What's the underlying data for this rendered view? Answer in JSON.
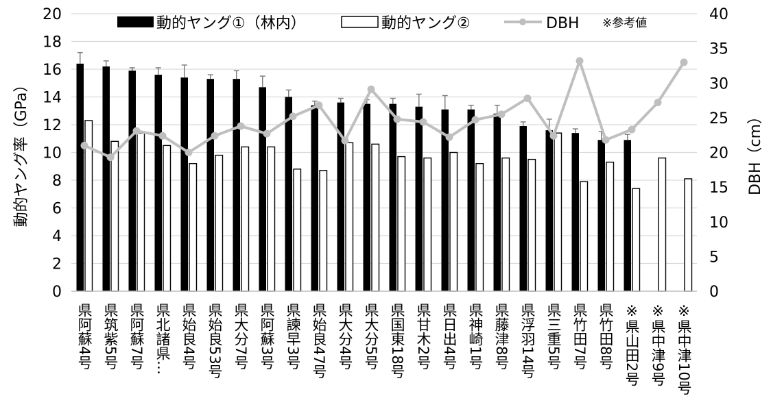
{
  "chart_data": {
    "type": "bar",
    "categories": [
      "県阿蘇4号",
      "県筑紫5号",
      "県阿蘇7号",
      "県北諸県…",
      "県始良4号",
      "県始良53号",
      "県大分7号",
      "県阿蘇3号",
      "県諫早3号",
      "県始良47号",
      "県大分4号",
      "県大分5号",
      "県国東18号",
      "県甘木2号",
      "県日出4号",
      "県神崎1号",
      "県藤津8号",
      "県浮羽14号",
      "県三重5号",
      "県竹田7号",
      "県竹田8号",
      "※県山田2号",
      "※県中津9号",
      "※県中津10号"
    ],
    "series": [
      {
        "name": "動的ヤング①（林内）",
        "axis": "left",
        "kind": "bar",
        "color": "#000000",
        "values": [
          16.4,
          16.2,
          15.9,
          15.6,
          15.4,
          15.3,
          15.3,
          14.7,
          14.0,
          13.4,
          13.6,
          13.5,
          13.5,
          13.3,
          13.1,
          13.1,
          12.8,
          11.9,
          11.6,
          11.4,
          10.9,
          10.9,
          null,
          null
        ],
        "errors": [
          0.8,
          0.4,
          0.2,
          0.5,
          0.9,
          0.3,
          0.6,
          0.8,
          0.5,
          0.3,
          0.3,
          0.3,
          0.4,
          0.9,
          1.0,
          0.3,
          0.6,
          0.3,
          0.8,
          0.3,
          0.6,
          0.4,
          null,
          null
        ]
      },
      {
        "name": "動的ヤング②",
        "axis": "left",
        "kind": "bar",
        "color": "#ffffff",
        "values": [
          12.3,
          10.8,
          11.4,
          10.5,
          9.2,
          9.8,
          10.4,
          10.4,
          8.8,
          8.7,
          10.7,
          10.6,
          9.7,
          9.6,
          10.0,
          9.2,
          9.6,
          9.5,
          11.4,
          7.9,
          9.3,
          7.4,
          9.6,
          8.1
        ]
      },
      {
        "name": "DBH",
        "axis": "right",
        "kind": "line",
        "color": "#bfbfbf",
        "values": [
          21.0,
          19.3,
          23.1,
          22.4,
          20.0,
          22.4,
          23.8,
          22.7,
          25.2,
          26.8,
          21.7,
          29.1,
          24.8,
          24.4,
          22.2,
          24.7,
          25.5,
          27.8,
          22.4,
          33.2,
          21.8,
          23.3,
          27.2,
          33.0
        ]
      }
    ],
    "ylabel": "動的ヤング率（GPa）",
    "y2label": "DBH（cm）",
    "ylim": [
      0,
      20
    ],
    "y2lim": [
      0,
      40
    ],
    "yticks": [
      "0",
      "2",
      "4",
      "6",
      "8",
      "10",
      "12",
      "14",
      "16",
      "18",
      "20"
    ],
    "y2ticks": [
      "0",
      "5",
      "10",
      "15",
      "20",
      "25",
      "30",
      "35",
      "40"
    ],
    "legend": {
      "position": "top",
      "items": [
        "動的ヤング①（林内）",
        "動的ヤング②",
        "DBH"
      ],
      "note": "※参考値"
    },
    "grid": true
  }
}
